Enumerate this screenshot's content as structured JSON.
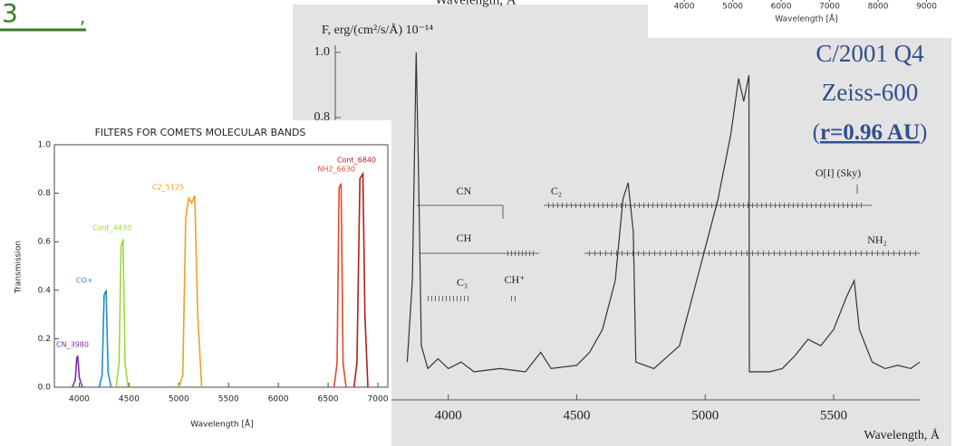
{
  "slide": {
    "number": "3",
    "mark": ",",
    "object": "C/2001 Q4",
    "telescope": "Zeiss-600",
    "distance_open": "(",
    "distance": "r=0.96 AU",
    "distance_close": ")"
  },
  "chart_data": [
    {
      "type": "axis",
      "xlabel": "Wavelength [Å]",
      "xlim": [
        3250,
        10000
      ],
      "xticks": [
        4000,
        5000,
        6000,
        7000,
        8000,
        9000
      ]
    },
    {
      "type": "line",
      "ylabel": "F, erg/(cm²/s/Å) 10⁻¹⁴",
      "xlabel": "Wavelength, Å",
      "xlabel_above": "Wavelength, Å",
      "xlim": [
        3560,
        5835
      ],
      "ylim": [
        -0.066,
        1.022
      ],
      "xticks": [
        4000,
        4500,
        5000,
        5500
      ],
      "yticks": [
        {
          "value": 1,
          "label": "1.0"
        },
        0.8
      ],
      "color": "#333333",
      "x": [
        3840,
        3860,
        3875,
        3885,
        3895,
        3920,
        3960,
        4000,
        4050,
        4100,
        4200,
        4300,
        4360,
        4400,
        4500,
        4550,
        4600,
        4650,
        4680,
        4700,
        4720,
        4730,
        4800,
        4900,
        4950,
        5000,
        5050,
        5100,
        5130,
        5150,
        5170,
        5172,
        5250,
        5300,
        5350,
        5400,
        5450,
        5500,
        5550,
        5580,
        5600,
        5650,
        5700,
        5750,
        5800,
        5835
      ],
      "values": [
        0.05,
        0.3,
        1.0,
        0.6,
        0.1,
        0.03,
        0.06,
        0.03,
        0.05,
        0.02,
        0.03,
        0.02,
        0.08,
        0.03,
        0.04,
        0.08,
        0.15,
        0.3,
        0.55,
        0.6,
        0.45,
        0.05,
        0.03,
        0.1,
        0.25,
        0.4,
        0.55,
        0.75,
        0.92,
        0.85,
        0.93,
        0.02,
        0.02,
        0.03,
        0.07,
        0.12,
        0.1,
        0.15,
        0.25,
        0.3,
        0.15,
        0.05,
        0.03,
        0.04,
        0.03,
        0.05
      ],
      "bands": [
        "CN",
        "C₂",
        "CH",
        "NH₂",
        "C₃",
        "CH⁺",
        "O[I] (Sky)"
      ]
    },
    {
      "type": "line",
      "title": "FILTERS FOR COMETS MOLECULAR BANDS",
      "xlabel": "Wavelength [Å]",
      "ylabel": "Transmission",
      "xlim": [
        3750,
        7100
      ],
      "ylim": [
        0,
        1
      ],
      "xticks": [
        4000,
        4500,
        5000,
        5500,
        6000,
        6500,
        7000
      ],
      "yticks": [
        {
          "value": 0,
          "label": "0.0"
        },
        0.2,
        0.4,
        0.6,
        0.8,
        {
          "value": 1,
          "label": "1.0"
        }
      ],
      "series": [
        {
          "name": "CN_3980",
          "color": "#7b2ca8",
          "x": [
            3930,
            3960,
            3975,
            3985,
            4000,
            4030
          ],
          "values": [
            0,
            0.03,
            0.12,
            0.13,
            0.04,
            0
          ]
        },
        {
          "name": "CO+",
          "color": "#1f8fc4",
          "x": [
            4200,
            4230,
            4250,
            4270,
            4290,
            4320
          ],
          "values": [
            0,
            0.05,
            0.38,
            0.4,
            0.06,
            0
          ]
        },
        {
          "name": "Cont_4430",
          "color": "#9ed83a",
          "x": [
            4370,
            4400,
            4420,
            4440,
            4460,
            4490
          ],
          "values": [
            0,
            0.1,
            0.58,
            0.61,
            0.1,
            0
          ]
        },
        {
          "name": "C2_5125",
          "color": "#f0a020",
          "x": [
            5000,
            5040,
            5070,
            5100,
            5130,
            5160,
            5190,
            5230
          ],
          "values": [
            0,
            0.05,
            0.7,
            0.78,
            0.76,
            0.79,
            0.3,
            0
          ]
        },
        {
          "name": "NH2_6630",
          "color": "#e04a2a",
          "x": [
            6560,
            6590,
            6610,
            6630,
            6650,
            6680
          ],
          "values": [
            0,
            0.1,
            0.82,
            0.84,
            0.1,
            0
          ]
        },
        {
          "name": "Cont_6840",
          "color": "#b0201a",
          "x": [
            6760,
            6790,
            6820,
            6850,
            6870,
            6900
          ],
          "values": [
            0,
            0.1,
            0.86,
            0.88,
            0.3,
            0
          ]
        }
      ]
    }
  ]
}
